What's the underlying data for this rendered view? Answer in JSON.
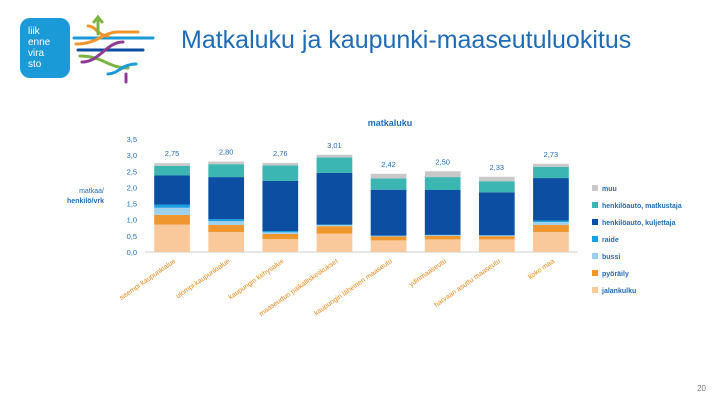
{
  "logo": {
    "lines": [
      "liik",
      "enne",
      "vira",
      "sto"
    ],
    "bg_color": "#1a9bd7"
  },
  "title": "Matkaluku ja kaupunki-maaseutuluokitus",
  "page_number": "20",
  "chart_data": {
    "type": "bar",
    "stacked": true,
    "title": "matkaluku",
    "ylabel_lines": [
      "matkaa/",
      "henkilö/vrk"
    ],
    "ylim": [
      0,
      3.5
    ],
    "yticks": [
      "0,0",
      "0,5",
      "1,0",
      "1,5",
      "2,0",
      "2,5",
      "3,0",
      "3,5"
    ],
    "grid": false,
    "legend_position": "right",
    "categories": [
      "sisempi kaupunkialue",
      "ulompi kaupunkialue",
      "kaupungin kehysalue",
      "maaseudun paikalliskeskukset",
      "kaupungin läheinen maaseutu",
      "ydinmaaseutu",
      "harvaan asuttu maaseutu",
      "koko maa"
    ],
    "totals": [
      2.75,
      2.8,
      2.76,
      3.01,
      2.42,
      2.5,
      2.33,
      2.73
    ],
    "total_labels": [
      "2,75",
      "2,80",
      "2,76",
      "3,01",
      "2,42",
      "2,50",
      "2,33",
      "2,73"
    ],
    "series": [
      {
        "name": "jalankulku",
        "color": "#f9c89b",
        "values": [
          0.85,
          0.62,
          0.4,
          0.57,
          0.36,
          0.39,
          0.39,
          0.62
        ]
      },
      {
        "name": "pyöräily",
        "color": "#f0962f",
        "values": [
          0.3,
          0.22,
          0.16,
          0.23,
          0.12,
          0.11,
          0.1,
          0.22
        ]
      },
      {
        "name": "bussi",
        "color": "#9cd0ec",
        "values": [
          0.22,
          0.12,
          0.05,
          0.04,
          0.02,
          0.02,
          0.02,
          0.09
        ]
      },
      {
        "name": "raide",
        "color": "#1aa0e0",
        "values": [
          0.1,
          0.06,
          0.04,
          0.01,
          0.01,
          0.01,
          0.01,
          0.04
        ]
      },
      {
        "name": "henkilöauto, kuljettaja",
        "color": "#0b4ea2",
        "values": [
          0.9,
          1.3,
          1.55,
          1.6,
          1.42,
          1.39,
          1.33,
          1.32
        ]
      },
      {
        "name": "henkilöauto, matkustaja",
        "color": "#3cb6b2",
        "values": [
          0.3,
          0.4,
          0.48,
          0.48,
          0.35,
          0.4,
          0.34,
          0.35
        ]
      },
      {
        "name": "muu",
        "color": "#c8c8c8",
        "values": [
          0.08,
          0.08,
          0.08,
          0.08,
          0.14,
          0.18,
          0.14,
          0.09
        ]
      }
    ]
  }
}
